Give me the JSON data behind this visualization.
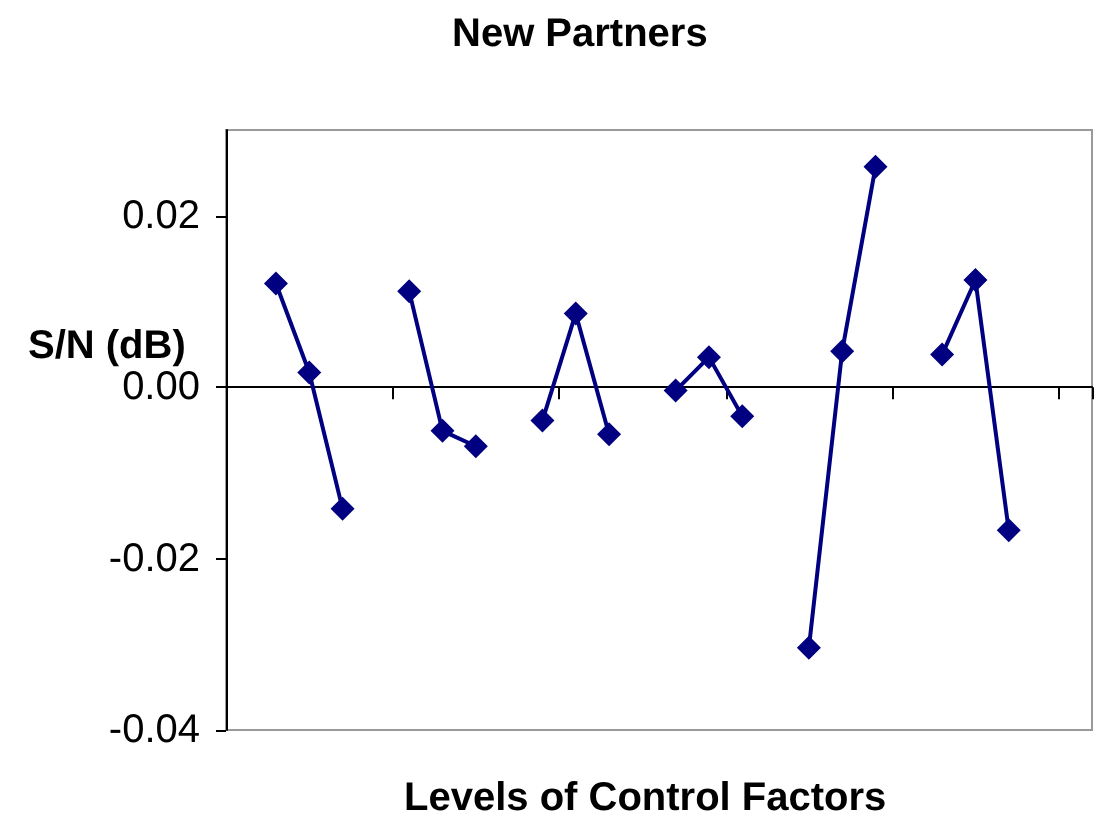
{
  "chart_data": {
    "type": "line",
    "title": "New Partners",
    "xlabel": "Levels of Control Factors",
    "ylabel": "S/N (dB)",
    "categories": [
      null,
      null,
      null,
      null,
      null,
      null,
      null,
      null,
      null,
      null,
      null,
      null,
      null,
      null,
      null,
      null,
      null,
      null,
      null,
      null,
      null,
      null,
      null,
      null,
      null,
      null
    ],
    "series": [
      {
        "color": "#000080",
        "values": [
          null,
          0.0121,
          0.0017,
          -0.0142,
          null,
          0.0112,
          -0.0051,
          -0.0069,
          null,
          -0.0039,
          0.0086,
          -0.0055,
          null,
          -0.0004,
          0.0035,
          -0.0034,
          null,
          -0.0304,
          0.0042,
          0.0257,
          null,
          0.0038,
          0.0125,
          -0.0167,
          null,
          null
        ]
      }
    ],
    "ylim": [
      -0.04,
      0.03
    ],
    "yticks": [
      -0.04,
      -0.02,
      {
        "value": 0,
        "label": "0.00"
      },
      0.02
    ],
    "marker": "diamond",
    "line_style": "solid",
    "tick_labels": "y"
  }
}
